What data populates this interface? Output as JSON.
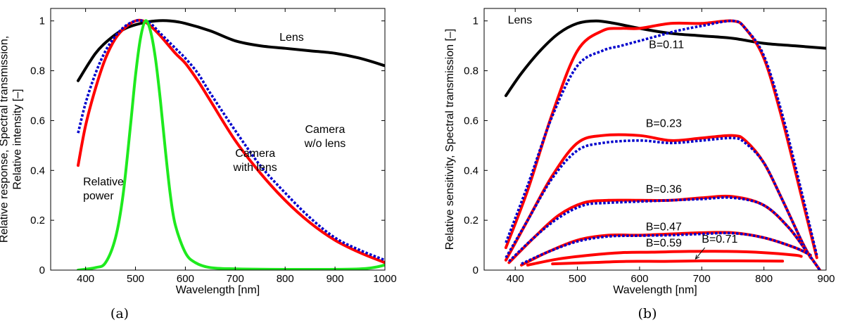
{
  "colors": {
    "black": "#000000",
    "red": "#ff0000",
    "blue": "#0000cc",
    "green": "#1eea1e"
  },
  "chart_data": [
    {
      "type": "line",
      "caption": "(a)",
      "xlabel": "Wavelength [nm]",
      "ylabel": [
        "Relative response, Spectral transmission,",
        "Relative intensity [–]"
      ],
      "xlim": [
        330,
        1000
      ],
      "ylim": [
        0,
        1.05
      ],
      "xticks": [
        "400",
        "500",
        "600",
        "700",
        "800",
        "900",
        "1000"
      ],
      "yticks": [
        "0",
        "0.2",
        "0.4",
        "0.6",
        "0.8",
        "1"
      ],
      "series": [
        {
          "key": "lens",
          "color": "#000000",
          "style": "solid",
          "x": [
            385,
            420,
            450,
            480,
            510,
            540,
            570,
            600,
            650,
            700,
            750,
            800,
            850,
            900,
            950,
            1000
          ],
          "y": [
            0.76,
            0.87,
            0.93,
            0.97,
            0.99,
            1.0,
            1.0,
            0.99,
            0.96,
            0.92,
            0.9,
            0.89,
            0.88,
            0.87,
            0.85,
            0.82
          ]
        },
        {
          "key": "camera_with_lens",
          "color": "#ff0000",
          "style": "solid",
          "x": [
            385,
            400,
            420,
            440,
            460,
            480,
            500,
            515,
            530,
            550,
            580,
            600,
            625,
            650,
            700,
            750,
            800,
            850,
            900,
            950,
            1000
          ],
          "y": [
            0.42,
            0.58,
            0.73,
            0.85,
            0.93,
            0.975,
            1.0,
            1.0,
            0.98,
            0.94,
            0.87,
            0.83,
            0.76,
            0.68,
            0.52,
            0.39,
            0.28,
            0.19,
            0.12,
            0.07,
            0.03
          ]
        },
        {
          "key": "camera_without_lens",
          "color": "#0000cc",
          "style": "dotted",
          "x": [
            385,
            400,
            420,
            440,
            460,
            480,
            500,
            515,
            530,
            550,
            580,
            600,
            625,
            650,
            700,
            750,
            800,
            850,
            900,
            950,
            1000
          ],
          "y": [
            0.55,
            0.67,
            0.79,
            0.88,
            0.94,
            0.98,
            1.0,
            1.0,
            0.99,
            0.95,
            0.89,
            0.85,
            0.79,
            0.71,
            0.56,
            0.42,
            0.31,
            0.21,
            0.13,
            0.08,
            0.04
          ]
        },
        {
          "key": "relative_power",
          "color": "#1eea1e",
          "style": "solid",
          "x": [
            385,
            420,
            440,
            460,
            475,
            490,
            500,
            510,
            520,
            530,
            540,
            550,
            560,
            570,
            580,
            600,
            620,
            650,
            700,
            800,
            950,
            1000
          ],
          "y": [
            0.0,
            0.01,
            0.03,
            0.13,
            0.3,
            0.58,
            0.78,
            0.93,
            1.0,
            0.96,
            0.85,
            0.68,
            0.48,
            0.3,
            0.18,
            0.07,
            0.03,
            0.01,
            0.005,
            0.003,
            0.005,
            0.02
          ]
        }
      ],
      "annotations": [
        {
          "lines": [
            "Lens"
          ],
          "x": 813,
          "y": 0.92,
          "anchor": "middle"
        },
        {
          "lines": [
            "Camera",
            "w/o lens"
          ],
          "x": 880,
          "y": 0.55,
          "anchor": "middle"
        },
        {
          "lines": [
            "Camera",
            "with lens"
          ],
          "x": 740,
          "y": 0.455,
          "anchor": "middle"
        },
        {
          "lines": [
            "Relative",
            "power"
          ],
          "x": 395,
          "y": 0.34,
          "anchor": "start"
        }
      ]
    },
    {
      "type": "line",
      "caption": "(b)",
      "xlabel": "Wavelength [nm]",
      "ylabel": [
        "Relative sensitivity, Spectral transmission [–]"
      ],
      "xlim": [
        350,
        900
      ],
      "ylim": [
        0,
        1.05
      ],
      "xticks": [
        "400",
        "500",
        "600",
        "700",
        "800",
        "900"
      ],
      "yticks": [
        "0",
        "0.2",
        "0.4",
        "0.6",
        "0.8",
        "1"
      ],
      "series": [
        {
          "key": "lens",
          "color": "#000000",
          "style": "solid",
          "x": [
            385,
            410,
            440,
            470,
            500,
            530,
            560,
            600,
            650,
            700,
            750,
            800,
            850,
            900
          ],
          "y": [
            0.7,
            0.79,
            0.88,
            0.95,
            0.99,
            1.0,
            0.99,
            0.97,
            0.95,
            0.94,
            0.93,
            0.91,
            0.9,
            0.89
          ]
        },
        {
          "key": "b011_red",
          "color": "#ff0000",
          "style": "solid",
          "x": [
            385,
            420,
            460,
            500,
            540,
            570,
            600,
            650,
            700,
            750,
            770,
            800,
            830,
            860,
            885
          ],
          "y": [
            0.09,
            0.32,
            0.63,
            0.88,
            0.96,
            0.97,
            0.97,
            0.99,
            0.99,
            1.0,
            0.97,
            0.85,
            0.6,
            0.3,
            0.05
          ]
        },
        {
          "key": "b011_blue",
          "color": "#0000cc",
          "style": "dotted",
          "x": [
            385,
            420,
            460,
            500,
            540,
            570,
            600,
            630,
            660,
            700,
            750,
            770,
            800,
            830,
            860,
            885
          ],
          "y": [
            0.11,
            0.34,
            0.62,
            0.82,
            0.88,
            0.9,
            0.92,
            0.94,
            0.96,
            0.98,
            1.0,
            0.97,
            0.86,
            0.62,
            0.32,
            0.06
          ]
        },
        {
          "key": "b023_red",
          "color": "#ff0000",
          "style": "solid",
          "x": [
            385,
            420,
            460,
            500,
            540,
            600,
            650,
            700,
            750,
            770,
            800,
            830,
            860,
            875
          ],
          "y": [
            0.04,
            0.2,
            0.38,
            0.51,
            0.54,
            0.54,
            0.52,
            0.53,
            0.54,
            0.52,
            0.43,
            0.28,
            0.12,
            0.05
          ]
        },
        {
          "key": "b023_blue",
          "color": "#0000cc",
          "style": "dotted",
          "x": [
            385,
            420,
            460,
            500,
            540,
            600,
            650,
            700,
            750,
            770,
            800,
            830,
            860,
            875
          ],
          "y": [
            0.05,
            0.2,
            0.37,
            0.48,
            0.51,
            0.52,
            0.51,
            0.52,
            0.53,
            0.51,
            0.43,
            0.28,
            0.12,
            0.05
          ]
        },
        {
          "key": "b036_red",
          "color": "#ff0000",
          "style": "solid",
          "x": [
            390,
            430,
            470,
            510,
            550,
            600,
            650,
            700,
            750,
            800,
            840,
            870,
            890
          ],
          "y": [
            0.03,
            0.13,
            0.22,
            0.27,
            0.28,
            0.28,
            0.28,
            0.29,
            0.295,
            0.26,
            0.17,
            0.07,
            0.0
          ]
        },
        {
          "key": "b036_blue",
          "color": "#0000cc",
          "style": "dotted",
          "x": [
            390,
            430,
            470,
            510,
            550,
            600,
            650,
            700,
            750,
            800,
            840,
            870,
            890
          ],
          "y": [
            0.035,
            0.13,
            0.21,
            0.26,
            0.27,
            0.275,
            0.28,
            0.285,
            0.29,
            0.26,
            0.17,
            0.07,
            0.0
          ]
        },
        {
          "key": "b047_red",
          "color": "#ff0000",
          "style": "solid",
          "x": [
            410,
            450,
            500,
            550,
            600,
            650,
            700,
            750,
            800,
            850,
            875
          ],
          "y": [
            0.02,
            0.07,
            0.12,
            0.14,
            0.14,
            0.145,
            0.15,
            0.15,
            0.13,
            0.09,
            0.06
          ]
        },
        {
          "key": "b047_blue",
          "color": "#0000cc",
          "style": "dotted",
          "x": [
            410,
            450,
            500,
            550,
            600,
            650,
            700,
            750,
            800,
            850,
            875
          ],
          "y": [
            0.025,
            0.07,
            0.115,
            0.135,
            0.138,
            0.14,
            0.145,
            0.148,
            0.13,
            0.09,
            0.06
          ]
        },
        {
          "key": "b059_red",
          "color": "#ff0000",
          "style": "solid",
          "x": [
            420,
            470,
            520,
            570,
            620,
            680,
            740,
            800,
            850,
            860
          ],
          "y": [
            0.02,
            0.045,
            0.06,
            0.07,
            0.072,
            0.075,
            0.075,
            0.07,
            0.06,
            0.055
          ]
        },
        {
          "key": "b071_red",
          "color": "#ff0000",
          "style": "solid",
          "x": [
            460,
            520,
            580,
            640,
            700,
            760,
            830
          ],
          "y": [
            0.025,
            0.03,
            0.035,
            0.035,
            0.037,
            0.037,
            0.036
          ]
        }
      ],
      "annotations": [
        {
          "lines": [
            "Lens"
          ],
          "x": 388,
          "y": 0.99,
          "anchor": "start"
        },
        {
          "lines": [
            "B=0.11"
          ],
          "x": 615,
          "y": 0.89,
          "anchor": "start"
        },
        {
          "lines": [
            "B=0.23"
          ],
          "x": 610,
          "y": 0.575,
          "anchor": "start"
        },
        {
          "lines": [
            "B=0.36"
          ],
          "x": 610,
          "y": 0.31,
          "anchor": "start"
        },
        {
          "lines": [
            "B=0.47"
          ],
          "x": 610,
          "y": 0.16,
          "anchor": "start"
        },
        {
          "lines": [
            "B=0.59"
          ],
          "x": 610,
          "y": 0.095,
          "anchor": "start"
        },
        {
          "lines": [
            "B=0.71"
          ],
          "x": 700,
          "y": 0.11,
          "anchor": "start"
        }
      ],
      "arrow": {
        "from": [
          705,
          0.09
        ],
        "to": [
          690,
          0.045
        ]
      }
    }
  ]
}
